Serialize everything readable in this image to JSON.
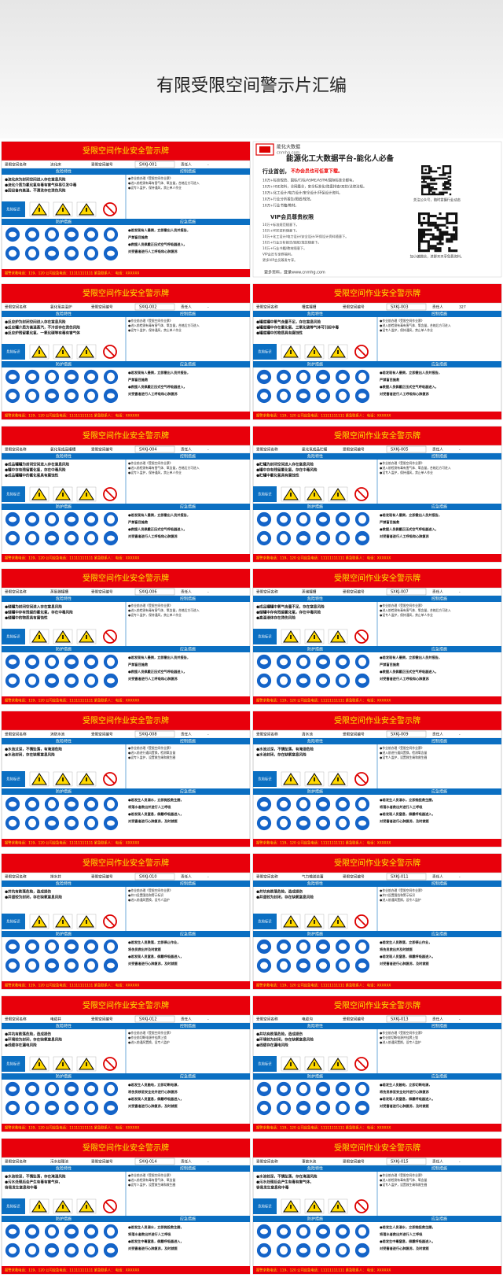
{
  "header": {
    "title": "有限受限空间警示片汇编"
  },
  "card_common": {
    "title": "受限空间作业安全警示牌",
    "name_label": "受限空间名称",
    "code_label": "受限空间编号",
    "person_label": "责任人",
    "hazard_header": "危险特性",
    "control_header": "控制措施",
    "sign_label": "危险标识",
    "protect_header": "防护措施",
    "emergency_header": "应急措施",
    "footer": "报警求救电话：119、120 公司应急电话：11111111111 紧急联系人：  电话：XXXXXX"
  },
  "cards": [
    {
      "name": "流化床",
      "code": "SXKJ-001",
      "person": "-",
      "hazards": [
        "●流化床为封闭空间进入存在窒息风险",
        "●流化介质为氯化氢有毒有害气体易引发中毒",
        "●因设备内高温、不清洗存在烫伤风险"
      ],
      "controls": [
        "●作业前办理《受限空间作业票》",
        "●进入前检测有毒有害气体、氧含量，合格后方可进入",
        "●设专人监护，保持通风，禁止单人作业"
      ],
      "emergency": [
        "●若发现有人晕倒，立即撤出人员并报告，",
        "  严禁盲目施救",
        "●救援人员佩戴正压式空气呼吸器进入，",
        "  对受害者进行人工呼吸和心肺复苏"
      ]
    },
    {
      "name": "氯化氢高温炉",
      "code": "SXKJ-002",
      "person": "-",
      "hazards": [
        "●反应炉为封闭空间进入存在窒息风险",
        "●反应罐介质为高温蒸汽，不冷却存在烫伤风险",
        "●反应炉残留氯化氢、一氧化碳等有毒有害气体"
      ],
      "controls": [
        "●作业前办理《受限空间作业票》",
        "●进入前检测有毒有害气体、氧含量，合格后方可进入",
        "●设专人监护，保持通风，禁止单人作业"
      ],
      "emergency": [
        "●若发现有人晕倒，立即撤出人员并报告，",
        "  严禁盲目施救",
        "●救援人员佩戴正压式空气呼吸器进入，",
        "  对受害者进行人工呼吸和心肺复苏"
      ]
    },
    {
      "name": "槽底罐槽",
      "code": "SXKJ-003",
      "person": "327",
      "hazards": [
        "●罐底罐中氧气含量不足，存在窒息风险",
        "●罐底罐中存在氯化氢、三氧化硫等气体可引起中毒",
        "●罐底罐中的物质具有腐蚀性"
      ],
      "controls": [
        "●作业前办理《受限空间作业票》",
        "●进入前检测有毒有害气体、氧含量，合格后方可进入",
        "●设专人监护，保持通风，禁止单人作业"
      ],
      "emergency": [
        "●若发现有人晕倒，立即撤出人员并报告，",
        "  严禁盲目施救",
        "●救援人员佩戴正压式空气呼吸器进入，",
        "  对受害者进行人工呼吸和心肺复苏"
      ]
    },
    {
      "name": "氯化氢成品罐槽",
      "code": "SXKJ-004",
      "person": "-",
      "hazards": [
        "●成品罐罐为封闭空间进入存在窒息风险",
        "●罐中存有残留氯化氢，存在中毒风险",
        "●成品罐罐中的氯化氢具有腐蚀性"
      ],
      "controls": [
        "●作业前办理《受限空间作业票》",
        "●进入前检测有毒有害气体、氧含量，合格后方可进入",
        "●设专人监护，保持通风，禁止单人作业"
      ],
      "emergency": [
        "●若发现有人晕倒，立即撤出人员并报告，",
        "  严禁盲目施救",
        "●救援人员佩戴正压式空气呼吸器进入，",
        "  对受害者进行人工呼吸和心肺复苏"
      ]
    },
    {
      "name": "氯化氢成品贮罐",
      "code": "SXKJ-005",
      "person": "-",
      "hazards": [
        "●贮罐为封闭空间进入存在窒息风险",
        "●罐中存有残留氯化氢，存在中毒风险",
        "●贮罐中氯化氢具有腐蚀性"
      ],
      "controls": [
        "●作业前办理《受限空间作业票》",
        "●进入前检测有毒有害气体、氧含量，合格后方可进入",
        "●设专人监护，保持通风，禁止单人作业"
      ],
      "emergency": [
        "●若发现有人晕倒，立即撤出人员并报告，",
        "  严禁盲目施救",
        "●救援人员佩戴正压式空气呼吸器进入，",
        "  对受害者进行人工呼吸和心肺复苏"
      ]
    },
    {
      "name": "蒸氨器罐槽",
      "code": "SXKJ-006",
      "person": "-",
      "hazards": [
        "●储罐为封闭空间进入存在窒息风险",
        "●储罐中存有残留的氯化氢，存在中毒风险",
        "●储罐中的物质具有腐蚀性"
      ],
      "controls": [
        "●作业前办理《受限空间作业票》",
        "●进入前检测有毒有害气体、氧含量，合格后方可进入",
        "●设专人监护，保持通风，禁止单人作业"
      ],
      "emergency": [
        "●若发现有人晕倒，立即撤出人员并报告，",
        "  严禁盲目施救",
        "●救援人员佩戴正压式空气呼吸器进入，",
        "  对受害者进行人工呼吸和心肺复苏"
      ]
    },
    {
      "name": "蒸储罐槽",
      "code": "SXKJ-007",
      "person": "-",
      "hazards": [
        "●成品罐罐中氧气含量不足，存在窒息风险",
        "●储罐中存有残留氯化氢，存在中毒风险",
        "●高温液体存在烫伤风险"
      ],
      "controls": [
        "●作业前办理《受限空间作业票》",
        "●进入前检测有毒有害气体、氧含量，合格后方可进入",
        "●设专人监护，保持通风，禁止单人作业"
      ],
      "emergency": [
        "●若发现有人晕倒，立即撤出人员并报告，",
        "  严禁盲目施救",
        "●救援人员佩戴正压式空气呼吸器进入，",
        "  对受害者进行人工呼吸和心肺复苏"
      ]
    },
    {
      "name": "消防水池",
      "code": "SXKJ-008",
      "person": "-",
      "hazards": [
        "●水池过深，不慎坠落，有淹溺危险",
        "●水池封闭，存在缺氧窒息风险"
      ],
      "controls": [
        "●作业前办理《受限空间作业票》",
        "●进入前进行通风置换，检测氧含量",
        "●设专人监护，设置救生绳和救生圈"
      ],
      "emergency": [
        "●若发生人员溺水，立即抛投救生圈，",
        "  将落水者救出并进行人工呼吸",
        "●若发现人员窒息，佩戴呼吸器进入，",
        "  对受害者进行心肺复苏，及时就医"
      ]
    },
    {
      "name": "清水池",
      "code": "SXKJ-009",
      "person": "-",
      "hazards": [
        "●水池过深，不慎坠落，有淹溺危险",
        "●水池封闭，存在缺氧窒息风险"
      ],
      "controls": [
        "●作业前办理《受限空间作业票》",
        "●进入前进行通风置换，检测氧含量",
        "●设专人监护，设置救生绳和救生圈"
      ],
      "emergency": [
        "●若发生人员溺水，立即抛投救生圈，",
        "  将落水者救出并进行人工呼吸",
        "●若发现人员窒息，佩戴呼吸器进入，",
        "  对受害者进行心肺复苏，及时就医"
      ]
    },
    {
      "name": "排水井",
      "code": "SXKJ-010",
      "person": "-",
      "hazards": [
        "●井坑有跌落危险，造成损伤",
        "●井道较为封闭，存在缺氧窒息风险"
      ],
      "controls": [
        "●作业前办理《受限空间作业票》",
        "●井口设置围挡和警示标识",
        "●进入前通风置换，设专人监护"
      ],
      "emergency": [
        "●若发生人员跌落，立即停止作业，",
        "  将伤员救出并及时就医",
        "●若发现人员窒息，佩戴呼吸器进入，",
        "  对受害者进行心肺复苏，及时就医"
      ]
    },
    {
      "name": "气力输送装置",
      "code": "SXKJ-011",
      "person": "-",
      "hazards": [
        "●井坑有跌落危险，造成损伤",
        "●井道较为封闭，存在缺氧窒息风险"
      ],
      "controls": [
        "●作业前办理《受限空间作业票》",
        "●井口设置围挡和警示标识",
        "●进入前通风置换，设专人监护"
      ],
      "emergency": [
        "●若发生人员跌落，立即停止作业，",
        "  将伤员救出并及时就医",
        "●若发现人员窒息，佩戴呼吸器进入，",
        "  对受害者进行心肺复苏，及时就医"
      ]
    },
    {
      "name": "电缆井",
      "code": "SXKJ-012",
      "person": "-",
      "hazards": [
        "●井坑有跌落危险，造成损伤",
        "●环境较为封闭，存在缺氧窒息风险",
        "●线缆存在漏电风险"
      ],
      "controls": [
        "●作业前办理《受限空间作业票》",
        "●作业前切断电源并挂牌上锁",
        "●进入前通风置换，设专人监护"
      ],
      "emergency": [
        "●若发生人员触电，立即切断电源，",
        "  将伤员移至安全处并进行心肺复苏",
        "●若发现人员窒息，佩戴呼吸器进入，",
        "  对受害者进行心肺复苏，及时就医"
      ]
    },
    {
      "name": "电缆沟",
      "code": "SXKJ-013",
      "person": "-",
      "hazards": [
        "●井坑有跌落危险，造成损伤",
        "●环境较为封闭，存在缺氧窒息风险",
        "●线缆存在漏电风险"
      ],
      "controls": [
        "●作业前办理《受限空间作业票》",
        "●作业前切断电源并挂牌上锁",
        "●进入前通风置换，设专人监护"
      ],
      "emergency": [
        "●若发生人员触电，立即切断电源，",
        "  将伤员移至安全处并进行心肺复苏",
        "●若发现人员窒息，佩戴呼吸器进入，",
        "  对受害者进行心肺复苏，及时就医"
      ]
    },
    {
      "name": "污水处理池",
      "code": "SXKJ-014",
      "person": "-",
      "hazards": [
        "●水池较深，不慎坠落，存在淹溺风险",
        "●污水处理后会产生有毒有害气体，",
        "  容易发生窒息和中毒"
      ],
      "controls": [
        "●作业前办理《受限空间作业票》",
        "●进入前检测有毒有害气体、氧含量",
        "●设专人监护，设置救生绳和救生圈"
      ],
      "emergency": [
        "●若发生人员溺水，立即抛投救生圈，",
        "  将落水者救出并进行人工呼吸",
        "●若发生中毒窒息，佩戴呼吸器进入，",
        "  对受害者进行心肺复苏，及时就医"
      ]
    },
    {
      "name": "事故水池",
      "code": "SXKJ-015",
      "person": "-",
      "hazards": [
        "●水池较深，不慎坠落，存在淹溺风险",
        "●污水处理后会产生有毒有害气体，",
        "  容易发生窒息和中毒"
      ],
      "controls": [
        "●作业前办理《受限空间作业票》",
        "●进入前检测有毒有害气体、氧含量",
        "●设专人监护，设置救生绳和救生圈"
      ],
      "emergency": [
        "●若发生人员溺水，立即抛投救生圈，",
        "  将落水者救出并进行人工呼吸",
        "●若发生中毒窒息，佩戴呼吸器进入，",
        "  对受害者进行心肺复苏，及时就医"
      ]
    }
  ],
  "ad": {
    "logo": "能化大数据",
    "domain": "cnmhg.com",
    "title": "能源化工大数据平台-能化人必备",
    "lead": "行业首创，",
    "lead_highlight": "不办会员也可任意下载。",
    "items": [
      "10万+标准规范、国标/行标/ASME/ASTM/国际标准全都有。",
      "10万+HSE资料，全网最全，安全标准化/隐患排查/双控/法律法规。",
      "10万+化工设计/电力设计/安全设计/环保设计资料。",
      "10万+行业分析报告/图纸/规范。",
      "10万+行业书籍/教材。"
    ],
    "vip_title": "VIP会员尊贵权限",
    "vip_items": [
      "10万+标准规范随意下。",
      "10万+HSE资料随意下。",
      "10万+化工设计/电力设计/安全设计/环保设计资料随意下。",
      "10万+行业分析报告/图纸/规范随意下。",
      "10万+行业书籍/教材随意下。",
      "VIP会员专享群福利。",
      "更多VIP会员尊贵专享。"
    ],
    "footer": "更多资料，登录www.cnmhg.com",
    "qr1_caption": "关注公众号，随时掌握行业动态",
    "qr2_caption": "加小编微信，进群天天享免费资料。"
  }
}
